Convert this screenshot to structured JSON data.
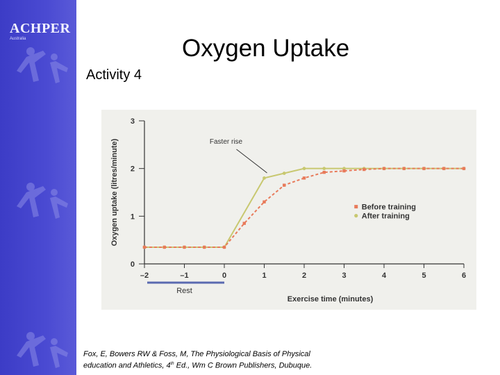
{
  "slide": {
    "title": "Oxygen Uptake",
    "subtitle": "Activity 4",
    "logo": {
      "text": "ACHPER",
      "subtext": "Australia"
    },
    "citation_1": "Fox, E, Bowers RW & Foss, M, The Physiological Basis of Physical",
    "citation_2_a": "education and Athletics, 4",
    "citation_2_sup": "th",
    "citation_2_b": " Ed., Wm C Brown Publishers, Dubuque."
  },
  "colors": {
    "sidebar": "#4444cc",
    "before_training": "#e87a5a",
    "after_training": "#c8c870",
    "rest_bar": "#5a6ab0",
    "chart_background": "#f0f0ec"
  },
  "chart_data": {
    "type": "line",
    "xlabel": "Exercise time (minutes)",
    "ylabel": "Oxygen uptake (litres/minute)",
    "xlim": [
      -2,
      6
    ],
    "ylim": [
      0,
      3
    ],
    "xticks": [
      "–2",
      "–1",
      "0",
      "1",
      "2",
      "3",
      "4",
      "5",
      "6"
    ],
    "yticks": [
      "0",
      "1",
      "2",
      "3"
    ],
    "grid": false,
    "legend_position": "right",
    "rest": {
      "label": "Rest",
      "from": -2,
      "to": 0
    },
    "annotation": {
      "text": "Faster rise",
      "x": 1,
      "y": 1.85
    },
    "series": [
      {
        "name": "Before training",
        "marker": "square",
        "line": "dashed",
        "color": "#e87a5a",
        "x": [
          -2,
          -1.5,
          -1,
          -0.5,
          0,
          0.5,
          1,
          1.5,
          2,
          2.5,
          3,
          3.5,
          4,
          4.5,
          5,
          5.5,
          6
        ],
        "y": [
          0.35,
          0.35,
          0.35,
          0.35,
          0.35,
          0.85,
          1.3,
          1.65,
          1.8,
          1.92,
          1.95,
          1.98,
          2.0,
          2.0,
          2.0,
          2.0,
          2.0
        ]
      },
      {
        "name": "After training",
        "marker": "circle",
        "line": "solid",
        "color": "#c8c870",
        "x": [
          -2,
          -1.5,
          -1,
          -0.5,
          0,
          1,
          1.5,
          2,
          2.5,
          3,
          3.5,
          4,
          4.5,
          5,
          5.5,
          6
        ],
        "y": [
          0.35,
          0.35,
          0.35,
          0.35,
          0.35,
          1.8,
          1.9,
          2.0,
          2.0,
          2.0,
          2.0,
          2.0,
          2.0,
          2.0,
          2.0,
          2.0
        ]
      }
    ]
  }
}
